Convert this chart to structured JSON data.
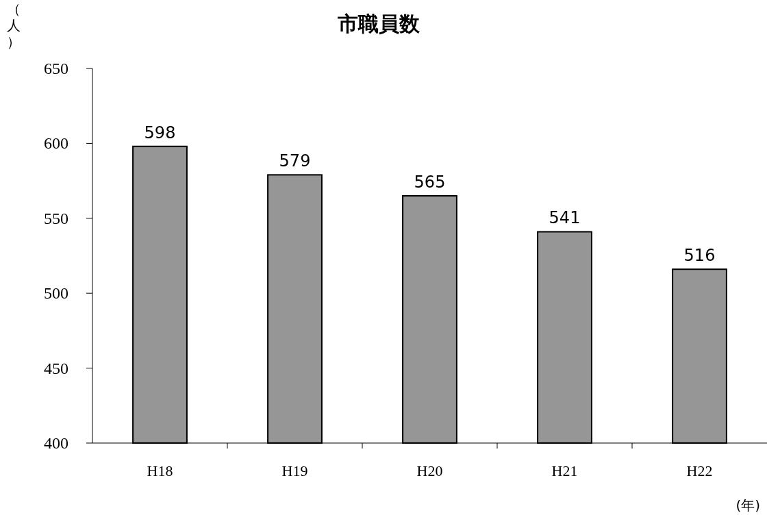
{
  "chart_data": {
    "type": "bar",
    "title": "市職員数",
    "ylabel": "（人）",
    "xlabel": "(年)",
    "categories": [
      "H18",
      "H19",
      "H20",
      "H21",
      "H22"
    ],
    "values": [
      598,
      579,
      565,
      541,
      516
    ],
    "color": "#969696",
    "ylim": [
      400,
      650
    ],
    "yticks": [
      400,
      450,
      500,
      550,
      600,
      650
    ],
    "data_labels": true
  }
}
